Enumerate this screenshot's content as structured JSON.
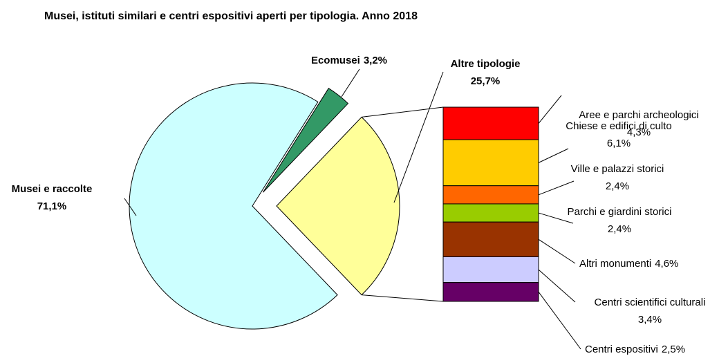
{
  "chart_data": {
    "type": "pie-of-bar",
    "title": "Musei, istituti similari e centri espositivi aperti per tipologia. Anno 2018",
    "categories": [
      "Musei e raccolte",
      "Ecomusei",
      "Altre tipologie"
    ],
    "values": [
      71.1,
      3.2,
      25.7
    ],
    "value_labels": [
      "71,1%",
      "3,2%",
      "25,7%"
    ],
    "colors": [
      "#ccffff",
      "#339966",
      "#ffff99"
    ],
    "breakdown": {
      "categories": [
        "Aree e parchi archeologici",
        "Chiese e edifici di culto",
        "Ville e palazzi storici",
        "Parchi e giardini storici",
        "Altri monumenti",
        "Centri scientifici culturali",
        "Centri espositivi"
      ],
      "values": [
        4.3,
        6.1,
        2.4,
        2.4,
        4.6,
        3.4,
        2.5
      ],
      "value_labels": [
        "4,3%",
        "6,1%",
        "2,4%",
        "2,4%",
        "4,6%",
        "3,4%",
        "2,5%"
      ],
      "colors": [
        "#ff0000",
        "#ffcc00",
        "#ff6600",
        "#99cc00",
        "#993300",
        "#ccccff",
        "#660066"
      ]
    }
  }
}
